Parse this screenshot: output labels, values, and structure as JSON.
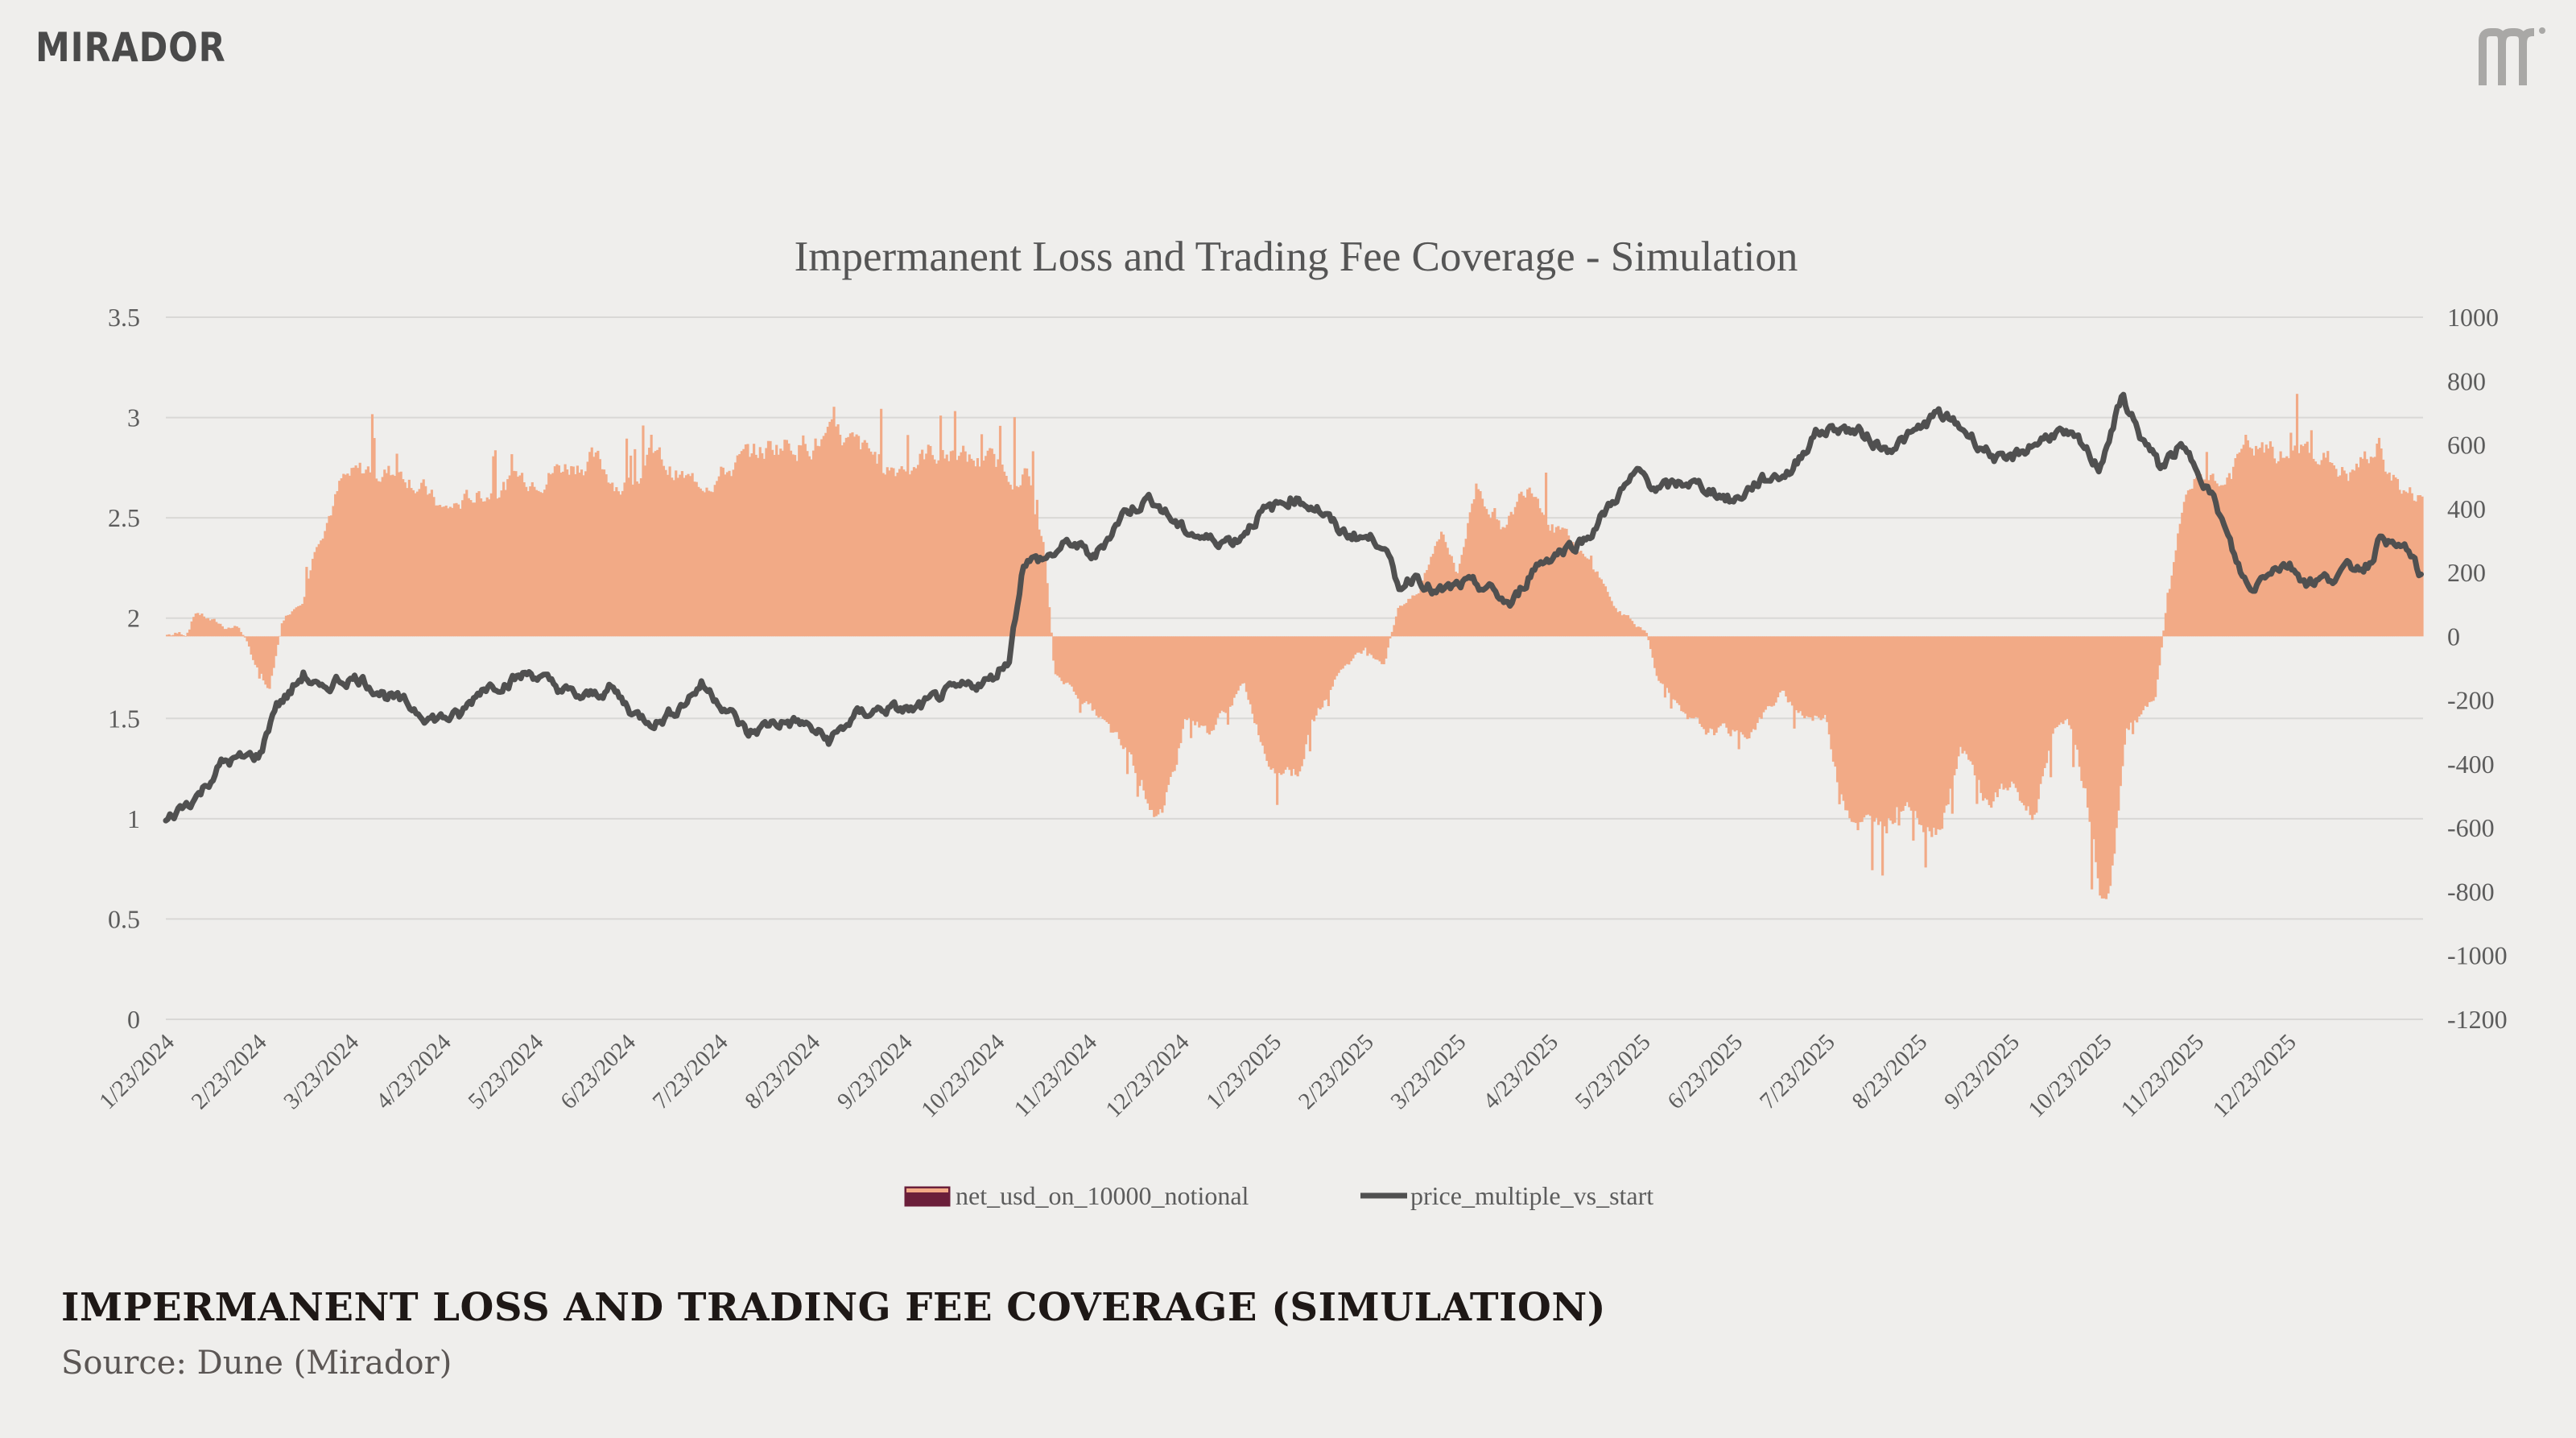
{
  "brand": {
    "name": "MIRADOR",
    "mark_icon": "mirador-m-icon"
  },
  "colors": {
    "bar": "#f2aa86",
    "line": "#505050",
    "grid": "#d9d8d6",
    "axis_text": "#5c5c5c",
    "background": "#efeeec"
  },
  "footer": {
    "title": "IMPERMANENT LOSS AND TRADING FEE COVERAGE (SIMULATION)",
    "source": "Source: Dune (Mirador)"
  },
  "chart_data": {
    "type": "bar+line",
    "title": "Impermanent Loss and Trading Fee Coverage - Simulation",
    "left_axis": {
      "min": 0,
      "max": 3.5,
      "ticks": [
        "0",
        "0.5",
        "1",
        "1.5",
        "2",
        "2.5",
        "3",
        "3.5"
      ],
      "series": "price_multiple_vs_start"
    },
    "right_axis": {
      "min": -1200,
      "max": 1000,
      "ticks": [
        "-1200",
        "-1000",
        "-800",
        "-600",
        "-400",
        "-200",
        "0",
        "200",
        "400",
        "600",
        "800",
        "1000"
      ],
      "series": "net_usd_on_10000_notional"
    },
    "x_axis": {
      "start": "1/23/2024",
      "end": "1/26/2026",
      "tick_labels": [
        "1/23/2024",
        "2/23/2024",
        "3/23/2024",
        "4/23/2024",
        "5/23/2024",
        "6/23/2024",
        "7/23/2024",
        "8/23/2024",
        "9/23/2024",
        "10/23/2024",
        "11/23/2024",
        "12/23/2024",
        "1/23/2025",
        "2/23/2025",
        "3/23/2025",
        "4/23/2025",
        "5/23/2025",
        "6/23/2025",
        "7/23/2025",
        "8/23/2025",
        "9/23/2025",
        "10/23/2025",
        "11/23/2025",
        "12/23/2025"
      ]
    },
    "legend": [
      "net_usd_on_10000_notional",
      "price_multiple_vs_start"
    ],
    "net_usd_anchors": [
      [
        0,
        5
      ],
      [
        8,
        10
      ],
      [
        12,
        80
      ],
      [
        18,
        50
      ],
      [
        24,
        30
      ],
      [
        30,
        30
      ],
      [
        36,
        -80
      ],
      [
        42,
        -170
      ],
      [
        48,
        60
      ],
      [
        56,
        120
      ],
      [
        62,
        310
      ],
      [
        72,
        480
      ],
      [
        84,
        520
      ],
      [
        100,
        510
      ],
      [
        114,
        390
      ],
      [
        125,
        430
      ],
      [
        140,
        480
      ],
      [
        158,
        520
      ],
      [
        174,
        560
      ],
      [
        188,
        470
      ],
      [
        200,
        560
      ],
      [
        216,
        480
      ],
      [
        231,
        520
      ],
      [
        250,
        600
      ],
      [
        265,
        620
      ],
      [
        280,
        600
      ],
      [
        300,
        530
      ],
      [
        316,
        580
      ],
      [
        338,
        540
      ],
      [
        355,
        510
      ],
      [
        362,
        260
      ],
      [
        366,
        -120
      ],
      [
        372,
        -150
      ],
      [
        385,
        -260
      ],
      [
        400,
        -420
      ],
      [
        411,
        -590
      ],
      [
        420,
        -250
      ],
      [
        430,
        -300
      ],
      [
        444,
        -150
      ],
      [
        454,
        -380
      ],
      [
        466,
        -420
      ],
      [
        472,
        -280
      ],
      [
        484,
        -100
      ],
      [
        494,
        -40
      ],
      [
        502,
        -80
      ],
      [
        508,
        100
      ],
      [
        516,
        130
      ],
      [
        526,
        350
      ],
      [
        532,
        190
      ],
      [
        540,
        480
      ],
      [
        552,
        330
      ],
      [
        562,
        500
      ],
      [
        572,
        350
      ],
      [
        580,
        280
      ],
      [
        590,
        200
      ],
      [
        598,
        80
      ],
      [
        610,
        10
      ],
      [
        614,
        -110
      ],
      [
        626,
        -270
      ],
      [
        636,
        -300
      ],
      [
        652,
        -300
      ],
      [
        666,
        -180
      ],
      [
        672,
        -230
      ],
      [
        684,
        -260
      ],
      [
        690,
        -470
      ],
      [
        696,
        -560
      ],
      [
        706,
        -630
      ],
      [
        716,
        -500
      ],
      [
        730,
        -600
      ],
      [
        740,
        -350
      ],
      [
        750,
        -520
      ],
      [
        760,
        -470
      ],
      [
        770,
        -570
      ],
      [
        776,
        -340
      ],
      [
        784,
        -240
      ],
      [
        792,
        -520
      ],
      [
        800,
        -870
      ],
      [
        808,
        -300
      ],
      [
        814,
        -250
      ],
      [
        820,
        -200
      ],
      [
        824,
        50
      ],
      [
        830,
        350
      ],
      [
        838,
        520
      ],
      [
        848,
        470
      ],
      [
        858,
        590
      ],
      [
        872,
        560
      ],
      [
        886,
        580
      ],
      [
        900,
        500
      ],
      [
        912,
        590
      ],
      [
        922,
        450
      ],
      [
        930,
        430
      ]
    ],
    "price_multiple_anchors": [
      [
        0,
        0.98
      ],
      [
        6,
        1.05
      ],
      [
        14,
        1.12
      ],
      [
        24,
        1.28
      ],
      [
        32,
        1.3
      ],
      [
        40,
        1.32
      ],
      [
        46,
        1.56
      ],
      [
        52,
        1.62
      ],
      [
        58,
        1.72
      ],
      [
        66,
        1.63
      ],
      [
        72,
        1.69
      ],
      [
        82,
        1.7
      ],
      [
        92,
        1.62
      ],
      [
        100,
        1.58
      ],
      [
        112,
        1.5
      ],
      [
        124,
        1.51
      ],
      [
        134,
        1.66
      ],
      [
        144,
        1.68
      ],
      [
        154,
        1.73
      ],
      [
        166,
        1.65
      ],
      [
        176,
        1.6
      ],
      [
        188,
        1.65
      ],
      [
        198,
        1.52
      ],
      [
        208,
        1.48
      ],
      [
        218,
        1.57
      ],
      [
        226,
        1.67
      ],
      [
        236,
        1.56
      ],
      [
        246,
        1.42
      ],
      [
        256,
        1.48
      ],
      [
        268,
        1.48
      ],
      [
        280,
        1.39
      ],
      [
        292,
        1.52
      ],
      [
        304,
        1.55
      ],
      [
        316,
        1.54
      ],
      [
        328,
        1.62
      ],
      [
        338,
        1.66
      ],
      [
        348,
        1.69
      ],
      [
        356,
        1.8
      ],
      [
        362,
        2.28
      ],
      [
        372,
        2.3
      ],
      [
        382,
        2.38
      ],
      [
        392,
        2.3
      ],
      [
        404,
        2.52
      ],
      [
        416,
        2.6
      ],
      [
        428,
        2.45
      ],
      [
        440,
        2.39
      ],
      [
        452,
        2.39
      ],
      [
        462,
        2.52
      ],
      [
        476,
        2.6
      ],
      [
        486,
        2.55
      ],
      [
        496,
        2.43
      ],
      [
        506,
        2.4
      ],
      [
        514,
        2.38
      ],
      [
        520,
        2.15
      ],
      [
        528,
        2.22
      ],
      [
        536,
        2.12
      ],
      [
        548,
        2.17
      ],
      [
        558,
        2.15
      ],
      [
        568,
        2.06
      ],
      [
        578,
        2.26
      ],
      [
        588,
        2.33
      ],
      [
        600,
        2.4
      ],
      [
        612,
        2.6
      ],
      [
        622,
        2.73
      ],
      [
        630,
        2.64
      ],
      [
        642,
        2.68
      ],
      [
        652,
        2.64
      ],
      [
        662,
        2.58
      ],
      [
        672,
        2.68
      ],
      [
        686,
        2.73
      ],
      [
        696,
        2.92
      ],
      [
        706,
        2.95
      ],
      [
        716,
        2.92
      ],
      [
        726,
        2.84
      ],
      [
        738,
        2.92
      ],
      [
        748,
        3.02
      ],
      [
        758,
        2.95
      ],
      [
        766,
        2.86
      ],
      [
        776,
        2.77
      ],
      [
        786,
        2.85
      ],
      [
        798,
        2.93
      ],
      [
        808,
        2.87
      ],
      [
        816,
        2.75
      ],
      [
        826,
        3.1
      ],
      [
        834,
        2.9
      ],
      [
        842,
        2.75
      ],
      [
        850,
        2.85
      ],
      [
        858,
        2.75
      ],
      [
        866,
        2.55
      ],
      [
        874,
        2.28
      ],
      [
        880,
        2.13
      ],
      [
        888,
        2.25
      ],
      [
        896,
        2.27
      ],
      [
        904,
        2.18
      ],
      [
        914,
        2.2
      ],
      [
        922,
        2.25
      ],
      [
        930,
        2.27
      ],
      [
        936,
        2.43
      ],
      [
        940,
        2.35
      ],
      [
        946,
        2.35
      ],
      [
        952,
        2.2
      ]
    ]
  }
}
